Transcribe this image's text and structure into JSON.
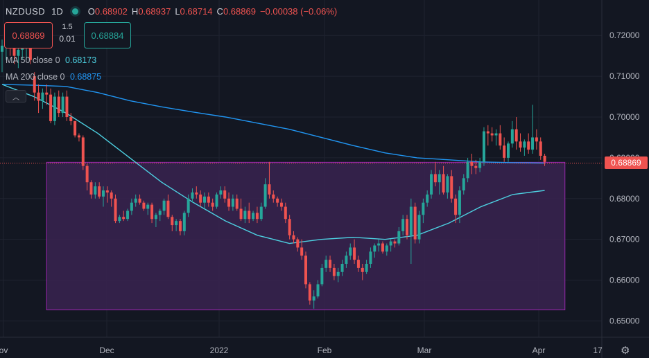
{
  "header": {
    "symbol": "NZDUSD",
    "timeframe": "1D",
    "open_label": "O",
    "open": "0.68902",
    "high_label": "H",
    "high": "0.68937",
    "low_label": "L",
    "low": "0.68714",
    "close_label": "C",
    "close": "0.68869",
    "change": "−0.00038 (−0.06%)"
  },
  "trade": {
    "sell_price": "0.68869",
    "spread": "1.5",
    "quantity": "0.01",
    "buy_price": "0.68884"
  },
  "indicators": {
    "ma50_label": "MA 50 close 0",
    "ma50_value": "0.68173",
    "ma200_label": "MA 200 close 0",
    "ma200_value": "0.68875"
  },
  "last_price": "0.68869",
  "colors": {
    "background": "#131722",
    "up": "#26a69a",
    "down": "#ef5350",
    "ma50": "#4dd0e1",
    "ma200": "#2196f3",
    "zone_fill": "#3a2350",
    "zone_border": "#9c27b0"
  },
  "chart_data": {
    "type": "candlestick",
    "ylim": [
      0.646,
      0.727
    ],
    "y_ticks": [
      "0.72000",
      "0.71000",
      "0.70000",
      "0.69000",
      "0.68000",
      "0.67000",
      "0.66000",
      "0.65000"
    ],
    "y_tick_values": [
      0.72,
      0.71,
      0.7,
      0.69,
      0.68,
      0.67,
      0.66,
      0.65
    ],
    "x_labels": [
      "ov",
      "Dec",
      "2022",
      "Feb",
      "Mar",
      "Apr",
      "17"
    ],
    "zone": {
      "from_bar": 11,
      "to_bar": 139,
      "top": 0.6889,
      "bottom": 0.6527
    },
    "ohlc": [
      [
        0.716,
        0.719,
        0.711,
        0.7175
      ],
      [
        0.7175,
        0.72,
        0.714,
        0.718
      ],
      [
        0.718,
        0.721,
        0.715,
        0.717
      ],
      [
        0.717,
        0.7195,
        0.713,
        0.715
      ],
      [
        0.715,
        0.7185,
        0.712,
        0.7165
      ],
      [
        0.7165,
        0.719,
        0.714,
        0.717
      ],
      [
        0.717,
        0.7205,
        0.714,
        0.7185
      ],
      [
        0.7185,
        0.72,
        0.713,
        0.714
      ],
      [
        0.71,
        0.711,
        0.704,
        0.706
      ],
      [
        0.706,
        0.708,
        0.701,
        0.704
      ],
      [
        0.704,
        0.707,
        0.702,
        0.706
      ],
      [
        0.706,
        0.708,
        0.703,
        0.7055
      ],
      [
        0.7055,
        0.707,
        0.6985,
        0.699
      ],
      [
        0.699,
        0.706,
        0.698,
        0.705
      ],
      [
        0.705,
        0.7065,
        0.7,
        0.701
      ],
      [
        0.701,
        0.706,
        0.7,
        0.705
      ],
      [
        0.705,
        0.7065,
        0.699,
        0.7
      ],
      [
        0.7,
        0.701,
        0.698,
        0.699
      ],
      [
        0.699,
        0.699,
        0.695,
        0.6955
      ],
      [
        0.6955,
        0.696,
        0.694,
        0.695
      ],
      [
        0.695,
        0.6955,
        0.687,
        0.688
      ],
      [
        0.688,
        0.6885,
        0.682,
        0.684
      ],
      [
        0.684,
        0.6845,
        0.68,
        0.681
      ],
      [
        0.681,
        0.684,
        0.68,
        0.683
      ],
      [
        0.683,
        0.684,
        0.68,
        0.6805
      ],
      [
        0.6805,
        0.683,
        0.678,
        0.682
      ],
      [
        0.682,
        0.683,
        0.679,
        0.6815
      ],
      [
        0.6815,
        0.682,
        0.678,
        0.68
      ],
      [
        0.68,
        0.681,
        0.674,
        0.6745
      ],
      [
        0.6745,
        0.676,
        0.674,
        0.6755
      ],
      [
        0.6755,
        0.677,
        0.6745,
        0.675
      ],
      [
        0.675,
        0.6775,
        0.6745,
        0.677
      ],
      [
        0.677,
        0.68,
        0.676,
        0.679
      ],
      [
        0.679,
        0.681,
        0.678,
        0.68
      ],
      [
        0.68,
        0.681,
        0.6785,
        0.679
      ],
      [
        0.679,
        0.6795,
        0.677,
        0.6775
      ],
      [
        0.6775,
        0.679,
        0.676,
        0.6785
      ],
      [
        0.6785,
        0.679,
        0.674,
        0.675
      ],
      [
        0.675,
        0.6765,
        0.673,
        0.676
      ],
      [
        0.676,
        0.6775,
        0.6745,
        0.677
      ],
      [
        0.677,
        0.68,
        0.676,
        0.6795
      ],
      [
        0.6795,
        0.681,
        0.675,
        0.6755
      ],
      [
        0.6755,
        0.676,
        0.672,
        0.6735
      ],
      [
        0.6735,
        0.675,
        0.672,
        0.6745
      ],
      [
        0.6745,
        0.675,
        0.671,
        0.672
      ],
      [
        0.672,
        0.677,
        0.671,
        0.6765
      ],
      [
        0.6765,
        0.681,
        0.6755,
        0.68
      ],
      [
        0.68,
        0.6825,
        0.679,
        0.6815
      ],
      [
        0.6815,
        0.683,
        0.68,
        0.681
      ],
      [
        0.681,
        0.682,
        0.678,
        0.679
      ],
      [
        0.679,
        0.6815,
        0.6775,
        0.6805
      ],
      [
        0.6805,
        0.6815,
        0.678,
        0.679
      ],
      [
        0.679,
        0.68,
        0.677,
        0.678
      ],
      [
        0.678,
        0.6815,
        0.6775,
        0.681
      ],
      [
        0.681,
        0.683,
        0.68,
        0.682
      ],
      [
        0.682,
        0.683,
        0.679,
        0.68
      ],
      [
        0.68,
        0.6815,
        0.677,
        0.678
      ],
      [
        0.678,
        0.681,
        0.677,
        0.68
      ],
      [
        0.68,
        0.681,
        0.677,
        0.6775
      ],
      [
        0.6775,
        0.68,
        0.6745,
        0.675
      ],
      [
        0.675,
        0.678,
        0.674,
        0.677
      ],
      [
        0.677,
        0.679,
        0.674,
        0.675
      ],
      [
        0.675,
        0.677,
        0.6745,
        0.6765
      ],
      [
        0.6765,
        0.678,
        0.674,
        0.675
      ],
      [
        0.675,
        0.679,
        0.6745,
        0.678
      ],
      [
        0.678,
        0.685,
        0.6775,
        0.6835
      ],
      [
        0.6835,
        0.689,
        0.68,
        0.681
      ],
      [
        0.681,
        0.682,
        0.679,
        0.68
      ],
      [
        0.68,
        0.6805,
        0.678,
        0.679
      ],
      [
        0.679,
        0.68,
        0.677,
        0.678
      ],
      [
        0.678,
        0.679,
        0.674,
        0.675
      ],
      [
        0.675,
        0.676,
        0.67,
        0.671
      ],
      [
        0.671,
        0.672,
        0.669,
        0.67
      ],
      [
        0.67,
        0.6705,
        0.667,
        0.668
      ],
      [
        0.668,
        0.67,
        0.665,
        0.666
      ],
      [
        0.666,
        0.667,
        0.658,
        0.659
      ],
      [
        0.659,
        0.6595,
        0.654,
        0.655
      ],
      [
        0.655,
        0.6575,
        0.653,
        0.656
      ],
      [
        0.656,
        0.66,
        0.6555,
        0.659
      ],
      [
        0.659,
        0.664,
        0.6585,
        0.663
      ],
      [
        0.663,
        0.666,
        0.662,
        0.665
      ],
      [
        0.665,
        0.666,
        0.662,
        0.663
      ],
      [
        0.663,
        0.664,
        0.66,
        0.661
      ],
      [
        0.661,
        0.663,
        0.6595,
        0.662
      ],
      [
        0.662,
        0.665,
        0.661,
        0.664
      ],
      [
        0.664,
        0.667,
        0.663,
        0.666
      ],
      [
        0.666,
        0.669,
        0.665,
        0.668
      ],
      [
        0.668,
        0.67,
        0.664,
        0.665
      ],
      [
        0.665,
        0.666,
        0.662,
        0.663
      ],
      [
        0.663,
        0.664,
        0.66,
        0.662
      ],
      [
        0.662,
        0.665,
        0.6615,
        0.664
      ],
      [
        0.664,
        0.668,
        0.663,
        0.667
      ],
      [
        0.667,
        0.669,
        0.6655,
        0.6685
      ],
      [
        0.6685,
        0.67,
        0.667,
        0.669
      ],
      [
        0.669,
        0.6695,
        0.6665,
        0.667
      ],
      [
        0.667,
        0.669,
        0.666,
        0.6685
      ],
      [
        0.6685,
        0.67,
        0.667,
        0.6695
      ],
      [
        0.6695,
        0.67,
        0.668,
        0.669
      ],
      [
        0.669,
        0.673,
        0.6685,
        0.672
      ],
      [
        0.672,
        0.676,
        0.671,
        0.675
      ],
      [
        0.675,
        0.676,
        0.67,
        0.671
      ],
      [
        0.671,
        0.68,
        0.664,
        0.678
      ],
      [
        0.678,
        0.679,
        0.669,
        0.67
      ],
      [
        0.67,
        0.677,
        0.669,
        0.676
      ],
      [
        0.676,
        0.68,
        0.674,
        0.679
      ],
      [
        0.679,
        0.682,
        0.678,
        0.681
      ],
      [
        0.681,
        0.687,
        0.68,
        0.686
      ],
      [
        0.686,
        0.689,
        0.683,
        0.684
      ],
      [
        0.684,
        0.687,
        0.681,
        0.686
      ],
      [
        0.686,
        0.688,
        0.681,
        0.6815
      ],
      [
        0.6815,
        0.686,
        0.68,
        0.6855
      ],
      [
        0.6855,
        0.687,
        0.679,
        0.68
      ],
      [
        0.68,
        0.681,
        0.674,
        0.676
      ],
      [
        0.676,
        0.683,
        0.674,
        0.682
      ],
      [
        0.682,
        0.686,
        0.681,
        0.685
      ],
      [
        0.685,
        0.69,
        0.684,
        0.689
      ],
      [
        0.689,
        0.691,
        0.686,
        0.688
      ],
      [
        0.688,
        0.6895,
        0.686,
        0.6875
      ],
      [
        0.6875,
        0.69,
        0.6865,
        0.689
      ],
      [
        0.689,
        0.6975,
        0.688,
        0.6965
      ],
      [
        0.6965,
        0.698,
        0.693,
        0.696
      ],
      [
        0.696,
        0.6975,
        0.694,
        0.6955
      ],
      [
        0.6955,
        0.697,
        0.693,
        0.696
      ],
      [
        0.696,
        0.698,
        0.692,
        0.693
      ],
      [
        0.693,
        0.695,
        0.689,
        0.69
      ],
      [
        0.69,
        0.694,
        0.689,
        0.6935
      ],
      [
        0.6935,
        0.699,
        0.6925,
        0.697
      ],
      [
        0.697,
        0.7,
        0.692,
        0.694
      ],
      [
        0.694,
        0.696,
        0.6915,
        0.6925
      ],
      [
        0.6925,
        0.6945,
        0.6905,
        0.694
      ],
      [
        0.694,
        0.696,
        0.691,
        0.692
      ],
      [
        0.692,
        0.703,
        0.691,
        0.695
      ],
      [
        0.695,
        0.697,
        0.692,
        0.694
      ],
      [
        0.694,
        0.695,
        0.6895,
        0.6905
      ],
      [
        0.6905,
        0.691,
        0.688,
        0.689
      ]
    ],
    "ma50": [
      0.708,
      0.705,
      0.701,
      0.696,
      0.69,
      0.684,
      0.679,
      0.6745,
      0.671,
      0.669,
      0.67,
      0.6705,
      0.67,
      0.671,
      0.674,
      0.678,
      0.681,
      0.682
    ],
    "ma200": [
      0.708,
      0.7078,
      0.7075,
      0.706,
      0.704,
      0.7025,
      0.7012,
      0.7,
      0.6985,
      0.697,
      0.695,
      0.693,
      0.6912,
      0.69,
      0.6895,
      0.689,
      0.6888,
      0.6887
    ]
  }
}
